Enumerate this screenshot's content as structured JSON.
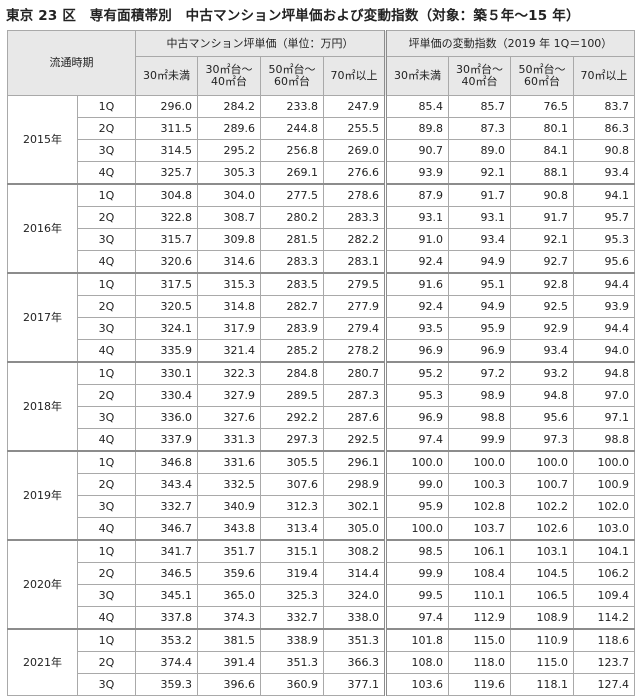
{
  "title": "東京 23 区　専有面積帯別　中古マンション坪単価および変動指数（対象：築５年～15 年）",
  "header": {
    "period": "流通時期",
    "price_group": "中古マンション坪単価（単位：万円）",
    "index_group": "坪単価の変動指数（2019 年 1Q＝100）",
    "bands": [
      "30㎡未満",
      "30㎡台～\n40㎡台",
      "50㎡台～\n60㎡台",
      "70㎡以上"
    ]
  },
  "years": [
    {
      "year": "2015年",
      "rows": [
        {
          "q": "1Q",
          "price": [
            "296.0",
            "284.2",
            "233.8",
            "247.9"
          ],
          "index": [
            "85.4",
            "85.7",
            "76.5",
            "83.7"
          ]
        },
        {
          "q": "2Q",
          "price": [
            "311.5",
            "289.6",
            "244.8",
            "255.5"
          ],
          "index": [
            "89.8",
            "87.3",
            "80.1",
            "86.3"
          ]
        },
        {
          "q": "3Q",
          "price": [
            "314.5",
            "295.2",
            "256.8",
            "269.0"
          ],
          "index": [
            "90.7",
            "89.0",
            "84.1",
            "90.8"
          ]
        },
        {
          "q": "4Q",
          "price": [
            "325.7",
            "305.3",
            "269.1",
            "276.6"
          ],
          "index": [
            "93.9",
            "92.1",
            "88.1",
            "93.4"
          ]
        }
      ]
    },
    {
      "year": "2016年",
      "rows": [
        {
          "q": "1Q",
          "price": [
            "304.8",
            "304.0",
            "277.5",
            "278.6"
          ],
          "index": [
            "87.9",
            "91.7",
            "90.8",
            "94.1"
          ]
        },
        {
          "q": "2Q",
          "price": [
            "322.8",
            "308.7",
            "280.2",
            "283.3"
          ],
          "index": [
            "93.1",
            "93.1",
            "91.7",
            "95.7"
          ]
        },
        {
          "q": "3Q",
          "price": [
            "315.7",
            "309.8",
            "281.5",
            "282.2"
          ],
          "index": [
            "91.0",
            "93.4",
            "92.1",
            "95.3"
          ]
        },
        {
          "q": "4Q",
          "price": [
            "320.6",
            "314.6",
            "283.3",
            "283.1"
          ],
          "index": [
            "92.4",
            "94.9",
            "92.7",
            "95.6"
          ]
        }
      ]
    },
    {
      "year": "2017年",
      "rows": [
        {
          "q": "1Q",
          "price": [
            "317.5",
            "315.3",
            "283.5",
            "279.5"
          ],
          "index": [
            "91.6",
            "95.1",
            "92.8",
            "94.4"
          ]
        },
        {
          "q": "2Q",
          "price": [
            "320.5",
            "314.8",
            "282.7",
            "277.9"
          ],
          "index": [
            "92.4",
            "94.9",
            "92.5",
            "93.9"
          ]
        },
        {
          "q": "3Q",
          "price": [
            "324.1",
            "317.9",
            "283.9",
            "279.4"
          ],
          "index": [
            "93.5",
            "95.9",
            "92.9",
            "94.4"
          ]
        },
        {
          "q": "4Q",
          "price": [
            "335.9",
            "321.4",
            "285.2",
            "278.2"
          ],
          "index": [
            "96.9",
            "96.9",
            "93.4",
            "94.0"
          ]
        }
      ]
    },
    {
      "year": "2018年",
      "rows": [
        {
          "q": "1Q",
          "price": [
            "330.1",
            "322.3",
            "284.8",
            "280.7"
          ],
          "index": [
            "95.2",
            "97.2",
            "93.2",
            "94.8"
          ]
        },
        {
          "q": "2Q",
          "price": [
            "330.4",
            "327.9",
            "289.5",
            "287.3"
          ],
          "index": [
            "95.3",
            "98.9",
            "94.8",
            "97.0"
          ]
        },
        {
          "q": "3Q",
          "price": [
            "336.0",
            "327.6",
            "292.2",
            "287.6"
          ],
          "index": [
            "96.9",
            "98.8",
            "95.6",
            "97.1"
          ]
        },
        {
          "q": "4Q",
          "price": [
            "337.9",
            "331.3",
            "297.3",
            "292.5"
          ],
          "index": [
            "97.4",
            "99.9",
            "97.3",
            "98.8"
          ]
        }
      ]
    },
    {
      "year": "2019年",
      "rows": [
        {
          "q": "1Q",
          "price": [
            "346.8",
            "331.6",
            "305.5",
            "296.1"
          ],
          "index": [
            "100.0",
            "100.0",
            "100.0",
            "100.0"
          ]
        },
        {
          "q": "2Q",
          "price": [
            "343.4",
            "332.5",
            "307.6",
            "298.9"
          ],
          "index": [
            "99.0",
            "100.3",
            "100.7",
            "100.9"
          ]
        },
        {
          "q": "3Q",
          "price": [
            "332.7",
            "340.9",
            "312.3",
            "302.1"
          ],
          "index": [
            "95.9",
            "102.8",
            "102.2",
            "102.0"
          ]
        },
        {
          "q": "4Q",
          "price": [
            "346.7",
            "343.8",
            "313.4",
            "305.0"
          ],
          "index": [
            "100.0",
            "103.7",
            "102.6",
            "103.0"
          ]
        }
      ]
    },
    {
      "year": "2020年",
      "rows": [
        {
          "q": "1Q",
          "price": [
            "341.7",
            "351.7",
            "315.1",
            "308.2"
          ],
          "index": [
            "98.5",
            "106.1",
            "103.1",
            "104.1"
          ]
        },
        {
          "q": "2Q",
          "price": [
            "346.5",
            "359.6",
            "319.4",
            "314.4"
          ],
          "index": [
            "99.9",
            "108.4",
            "104.5",
            "106.2"
          ]
        },
        {
          "q": "3Q",
          "price": [
            "345.1",
            "365.0",
            "325.3",
            "324.0"
          ],
          "index": [
            "99.5",
            "110.1",
            "106.5",
            "109.4"
          ]
        },
        {
          "q": "4Q",
          "price": [
            "337.8",
            "374.3",
            "332.7",
            "338.0"
          ],
          "index": [
            "97.4",
            "112.9",
            "108.9",
            "114.2"
          ]
        }
      ]
    },
    {
      "year": "2021年",
      "rows": [
        {
          "q": "1Q",
          "price": [
            "353.2",
            "381.5",
            "338.9",
            "351.3"
          ],
          "index": [
            "101.8",
            "115.0",
            "110.9",
            "118.6"
          ]
        },
        {
          "q": "2Q",
          "price": [
            "374.4",
            "391.4",
            "351.3",
            "366.3"
          ],
          "index": [
            "108.0",
            "118.0",
            "115.0",
            "123.7"
          ]
        },
        {
          "q": "3Q",
          "price": [
            "359.3",
            "396.6",
            "360.9",
            "377.1"
          ],
          "index": [
            "103.6",
            "119.6",
            "118.1",
            "127.4"
          ]
        }
      ]
    }
  ]
}
